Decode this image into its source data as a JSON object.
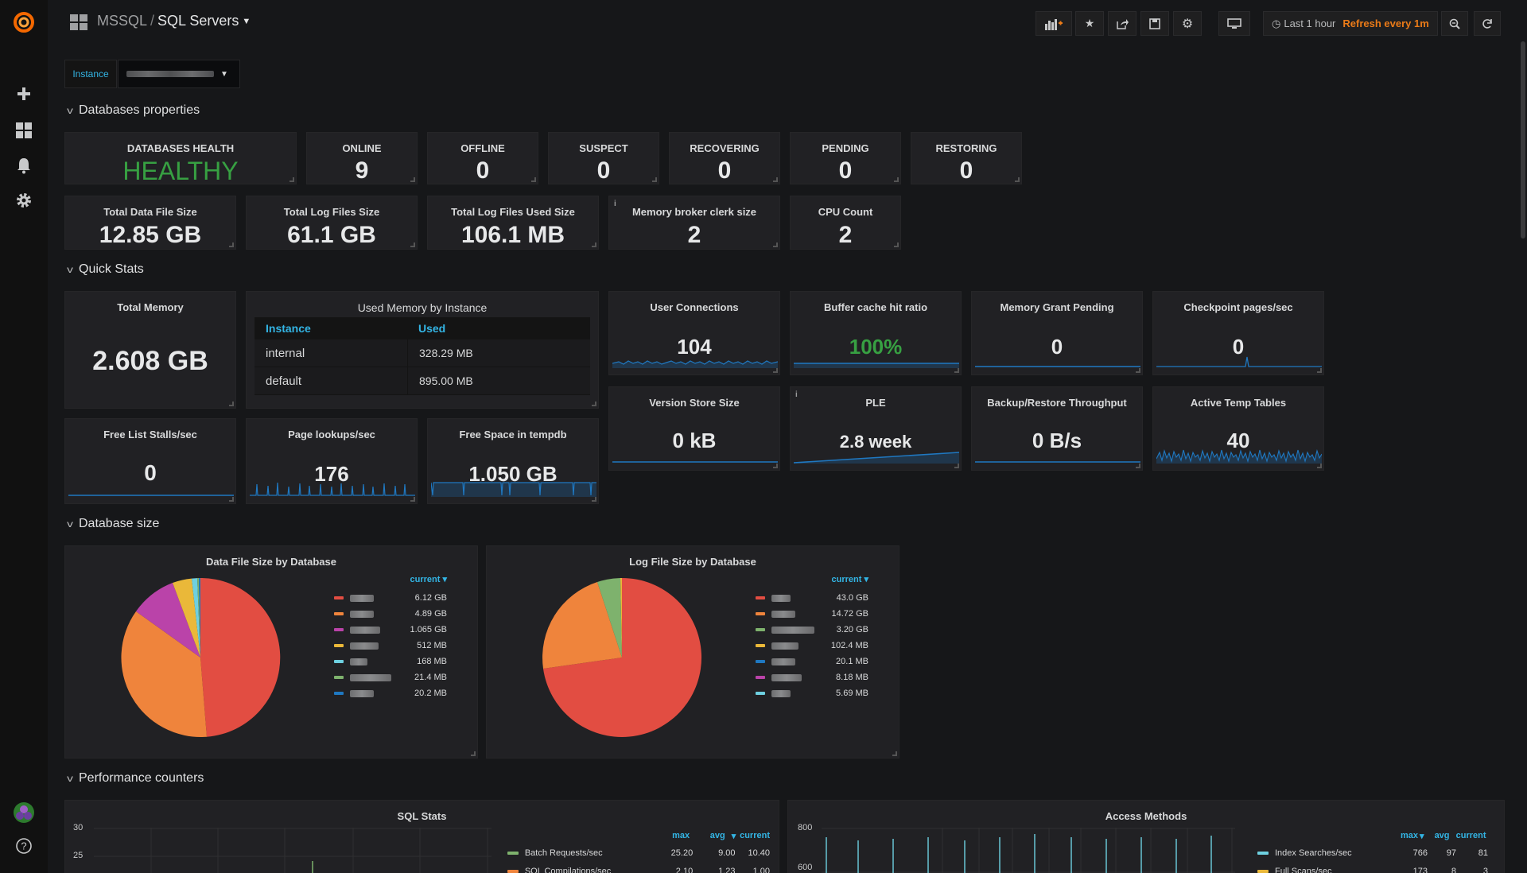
{
  "breadcrumb": {
    "folder": "MSSQL",
    "separator": "/",
    "title": "SQL Servers"
  },
  "timepicker": {
    "range": "Last 1 hour",
    "refresh": "Refresh every 1m"
  },
  "variable": {
    "label": "Instance"
  },
  "rows": {
    "db_props": "Databases properties",
    "quick": "Quick Stats",
    "db_size": "Database size",
    "perf": "Performance counters"
  },
  "stats": {
    "health": {
      "title": "DATABASES HEALTH",
      "value": "HEALTHY",
      "color": "#37a042"
    },
    "online": {
      "title": "ONLINE",
      "value": "9"
    },
    "offline": {
      "title": "OFFLINE",
      "value": "0"
    },
    "suspect": {
      "title": "SUSPECT",
      "value": "0"
    },
    "recovering": {
      "title": "RECOVERING",
      "value": "0"
    },
    "pending": {
      "title": "PENDING",
      "value": "0"
    },
    "restoring": {
      "title": "RESTORING",
      "value": "0"
    },
    "data_file": {
      "title": "Total Data File Size",
      "value": "12.85 GB"
    },
    "log_files": {
      "title": "Total Log Files Size",
      "value": "61.1 GB"
    },
    "log_used": {
      "title": "Total Log Files Used Size",
      "value": "106.1 MB"
    },
    "mem_broker": {
      "title": "Memory broker clerk size",
      "value": "2"
    },
    "cpu_count": {
      "title": "CPU Count",
      "value": "2"
    },
    "total_memory": {
      "title": "Total Memory",
      "value": "2.608 GB"
    },
    "user_conn": {
      "title": "User Connections",
      "value": "104"
    },
    "buffer_cache": {
      "title": "Buffer cache hit ratio",
      "value": "100%"
    },
    "mem_grant": {
      "title": "Memory Grant Pending",
      "value": "0"
    },
    "checkpoint": {
      "title": "Checkpoint pages/sec",
      "value": "0"
    },
    "version_store": {
      "title": "Version Store Size",
      "value": "0 kB"
    },
    "ple": {
      "title": "PLE",
      "value": "2.8 week"
    },
    "backup": {
      "title": "Backup/Restore Throughput",
      "value": "0 B/s"
    },
    "temp_tables": {
      "title": "Active Temp Tables",
      "value": "40"
    },
    "free_list": {
      "title": "Free List Stalls/sec",
      "value": "0"
    },
    "page_lookups": {
      "title": "Page lookups/sec",
      "value": "176"
    },
    "free_tempdb": {
      "title": "Free Space in tempdb",
      "value": "1.050 GB"
    }
  },
  "used_memory": {
    "title": "Used Memory by Instance",
    "columns": [
      "Instance",
      "Used"
    ],
    "rows": [
      {
        "instance": "internal",
        "used": "328.29 MB"
      },
      {
        "instance": "default",
        "used": "895.00 MB"
      }
    ]
  },
  "pies": {
    "data": {
      "title": "Data File Size by Database",
      "legend_header": "current",
      "values": [
        "6.12 GB",
        "4.89 GB",
        "1.065 GB",
        "512 MB",
        "168 MB",
        "21.4 MB",
        "20.2 MB"
      ]
    },
    "log": {
      "title": "Log File Size by Database",
      "legend_header": "current",
      "values": [
        "43.0 GB",
        "14.72 GB",
        "3.20 GB",
        "102.4 MB",
        "20.1 MB",
        "8.18 MB",
        "5.69 MB"
      ]
    }
  },
  "sql_stats": {
    "title": "SQL Stats",
    "yticks": [
      "30",
      "25"
    ],
    "legend_cols": [
      "max",
      "avg",
      "current"
    ],
    "series": [
      {
        "name": "Batch Requests/sec",
        "max": "25.20",
        "avg": "9.00",
        "current": "10.40",
        "color": "#7eb26d"
      },
      {
        "name": "SQL Compilations/sec",
        "max": "2.10",
        "avg": "1.23",
        "current": "1.00",
        "color": "#ef843c"
      }
    ]
  },
  "access_methods": {
    "title": "Access Methods",
    "yticks": [
      "800",
      "600"
    ],
    "legend_cols": [
      "max",
      "avg",
      "current"
    ],
    "series": [
      {
        "name": "Index Searches/sec",
        "max": "766",
        "avg": "97",
        "current": "81",
        "color": "#6ed0e0"
      },
      {
        "name": "Full Scans/sec",
        "max": "173",
        "avg": "8",
        "current": "3",
        "color": "#eab839"
      }
    ]
  },
  "colors": {
    "accent_blue": "#33b5e5",
    "refresh_orange": "#eb7b18",
    "spark_blue": "#1f78c1",
    "pie": [
      "#e24d42",
      "#ef843c",
      "#ba43a9",
      "#eab839",
      "#6ed0e0",
      "#7eb26d",
      "#1f78c1"
    ],
    "pie_log": [
      "#e24d42",
      "#ef843c",
      "#7eb26d",
      "#eab839",
      "#1f78c1",
      "#ba43a9",
      "#6ed0e0"
    ]
  }
}
